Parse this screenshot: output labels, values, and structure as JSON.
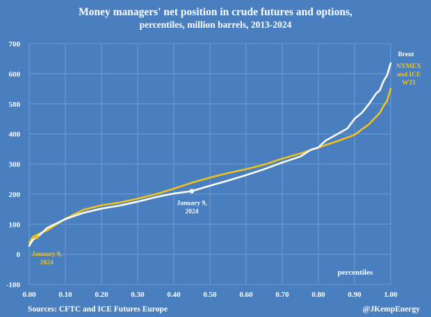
{
  "chart_data": {
    "type": "line",
    "title": "Money managers' net position in crude futures and options,",
    "subtitle": "percentiles, million barrels, 2013-2024",
    "xlabel": "percentiles",
    "ylabel": "",
    "xlim": [
      0,
      1
    ],
    "ylim": [
      -100,
      700
    ],
    "x_ticks": [
      "0.00",
      "0.10",
      "0.20",
      "0.30",
      "0.40",
      "0.50",
      "0.60",
      "0.70",
      "0.80",
      "0.90",
      "1.00"
    ],
    "y_ticks": [
      "-100",
      "0",
      "100",
      "200",
      "300",
      "400",
      "500",
      "600",
      "700"
    ],
    "grid": true,
    "series": [
      {
        "name": "Brent",
        "color": "#ffffff",
        "x": [
          0,
          0.01,
          0.03,
          0.05,
          0.1,
          0.15,
          0.2,
          0.25,
          0.3,
          0.35,
          0.4,
          0.45,
          0.5,
          0.55,
          0.6,
          0.65,
          0.7,
          0.75,
          0.78,
          0.8,
          0.82,
          0.85,
          0.88,
          0.9,
          0.92,
          0.94,
          0.96,
          0.97,
          0.98,
          0.99,
          1.0
        ],
        "values": [
          28,
          48,
          65,
          88,
          117,
          138,
          152,
          162,
          175,
          190,
          202,
          210,
          228,
          245,
          263,
          283,
          305,
          325,
          348,
          355,
          378,
          398,
          418,
          450,
          470,
          500,
          535,
          545,
          575,
          595,
          635
        ]
      },
      {
        "name": "NYMEX and ICE WTI",
        "color": "#f2c21a",
        "x": [
          0,
          0.01,
          0.03,
          0.05,
          0.1,
          0.15,
          0.2,
          0.25,
          0.3,
          0.35,
          0.4,
          0.45,
          0.5,
          0.55,
          0.6,
          0.65,
          0.7,
          0.75,
          0.8,
          0.85,
          0.9,
          0.92,
          0.94,
          0.96,
          0.97,
          0.98,
          0.99,
          1.0
        ],
        "values": [
          38,
          58,
          70,
          80,
          118,
          148,
          163,
          172,
          185,
          200,
          218,
          238,
          255,
          270,
          283,
          298,
          318,
          335,
          355,
          375,
          397,
          415,
          432,
          458,
          470,
          493,
          510,
          550
        ]
      }
    ],
    "annotations": [
      {
        "label": "January 9,",
        "label2": "2024",
        "series": "Brent",
        "x": 0.45,
        "y": 210
      },
      {
        "label": "January 9,",
        "label2": "2024",
        "series": "NYMEX and ICE WTI",
        "x": 0.02,
        "y": 58
      }
    ]
  },
  "footer": {
    "source": "Sources: CFTC and ICE Futures Europe",
    "credit": "@JKempEnergy"
  }
}
